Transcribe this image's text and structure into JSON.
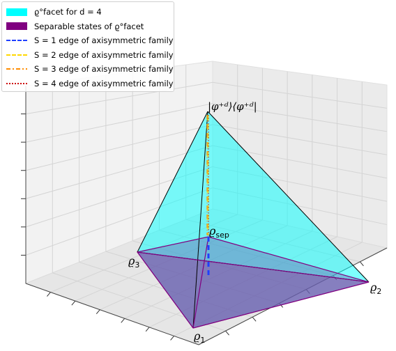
{
  "chart_data": {
    "type": "3d-polytope",
    "title": "",
    "grid": true,
    "legend_position": "top-left",
    "vertices": [
      {
        "label": "ϱ₁",
        "display": "ϱ",
        "sub": "1"
      },
      {
        "label": "ϱ₂",
        "display": "ϱ",
        "sub": "2"
      },
      {
        "label": "ϱ₃",
        "display": "ϱ",
        "sub": "3"
      },
      {
        "label": "|φ_d⁺⟩⟨φ_d⁺|",
        "display": "|φ⁺ᵈ⟩⟨φ⁺ᵈ|"
      },
      {
        "label": "ϱ_sep",
        "display": "ϱ",
        "sub": "sep"
      }
    ],
    "series": [
      {
        "name": "ϱ°facet for d = 4",
        "kind": "polytope",
        "color": "#00ffff",
        "opacity": 0.35
      },
      {
        "name": "Separable states of ϱ°facet",
        "kind": "polytope",
        "color": "#800080",
        "opacity": 0.5
      },
      {
        "name": "S = 1 edge of axisymmetric family",
        "kind": "edge",
        "color": "#1f3fff",
        "style": "dashed"
      },
      {
        "name": "S = 2 edge of axisymmetric family",
        "kind": "edge",
        "color": "#ffd700",
        "style": "dashed"
      },
      {
        "name": "S = 3 edge of axisymmetric family",
        "kind": "edge",
        "color": "#ff8c00",
        "style": "dashdot"
      },
      {
        "name": "S = 4 edge of axisymmetric family",
        "kind": "edge",
        "color": "#cc0000",
        "style": "dotted"
      }
    ]
  },
  "legend": {
    "items": [
      {
        "text": "ϱ°facet for d = 4",
        "swatch": "patch",
        "color": "#00ffff"
      },
      {
        "text": "Separable states of ϱ°facet",
        "swatch": "patch",
        "color": "#800080"
      },
      {
        "text": "S = 1 edge of axisymmetric family",
        "swatch": "dash",
        "color": "#1f3fff"
      },
      {
        "text": "S = 2 edge of axisymmetric family",
        "swatch": "dash",
        "color": "#ffd700"
      },
      {
        "text": "S = 3 edge of axisymmetric family",
        "swatch": "dashdot",
        "color": "#ff8c00"
      },
      {
        "text": "S = 4 edge of axisymmetric family",
        "swatch": "dot",
        "color": "#cc0000"
      }
    ]
  }
}
